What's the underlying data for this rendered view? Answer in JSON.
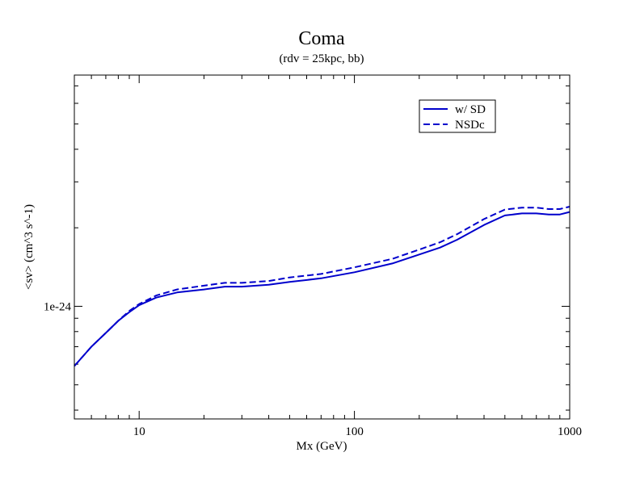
{
  "chart_data": {
    "type": "line",
    "title": "Coma",
    "subtitle": "(rdv = 25kpc, bb)",
    "xlabel": "Mx (GeV)",
    "ylabel": "<sv> (cm^3 s^-1)",
    "xscale": "log",
    "yscale": "log",
    "xlim": [
      5,
      1000
    ],
    "ylim": [
      3.7e-25,
      7.7e-24
    ],
    "x_ticks": [
      10,
      100,
      1000
    ],
    "x_tick_labels": [
      "10",
      "100",
      "1000"
    ],
    "y_ticks": [
      1e-24
    ],
    "y_tick_labels": [
      "1e-24"
    ],
    "grid": false,
    "legend_position": "top-right",
    "series": [
      {
        "name": "w/ SD",
        "style": "solid",
        "color": "#0000cc",
        "x": [
          5,
          6,
          7,
          8,
          9,
          10,
          12,
          15,
          20,
          25,
          30,
          40,
          50,
          70,
          100,
          150,
          200,
          250,
          300,
          400,
          500,
          600,
          700,
          800,
          900,
          1000
        ],
        "y": [
          5.9e-25,
          7e-25,
          7.9e-25,
          8.8e-25,
          9.5e-25,
          1.01e-24,
          1.08e-24,
          1.13e-24,
          1.16e-24,
          1.19e-24,
          1.19e-24,
          1.21e-24,
          1.24e-24,
          1.28e-24,
          1.35e-24,
          1.46e-24,
          1.58e-24,
          1.68e-24,
          1.8e-24,
          2.05e-24,
          2.23e-24,
          2.27e-24,
          2.27e-24,
          2.25e-24,
          2.25e-24,
          2.3e-24
        ]
      },
      {
        "name": "NSDc",
        "style": "dashed",
        "color": "#0000cc",
        "x": [
          5,
          6,
          7,
          8,
          9,
          10,
          12,
          15,
          20,
          25,
          30,
          40,
          50,
          70,
          100,
          150,
          200,
          250,
          300,
          400,
          500,
          600,
          700,
          800,
          900,
          1000
        ],
        "y": [
          5.9e-25,
          7e-25,
          7.9e-25,
          8.8e-25,
          9.6e-25,
          1.02e-24,
          1.1e-24,
          1.16e-24,
          1.2e-24,
          1.23e-24,
          1.23e-24,
          1.25e-24,
          1.29e-24,
          1.33e-24,
          1.41e-24,
          1.52e-24,
          1.65e-24,
          1.76e-24,
          1.89e-24,
          2.16e-24,
          2.35e-24,
          2.39e-24,
          2.39e-24,
          2.36e-24,
          2.36e-24,
          2.41e-24
        ]
      }
    ]
  }
}
